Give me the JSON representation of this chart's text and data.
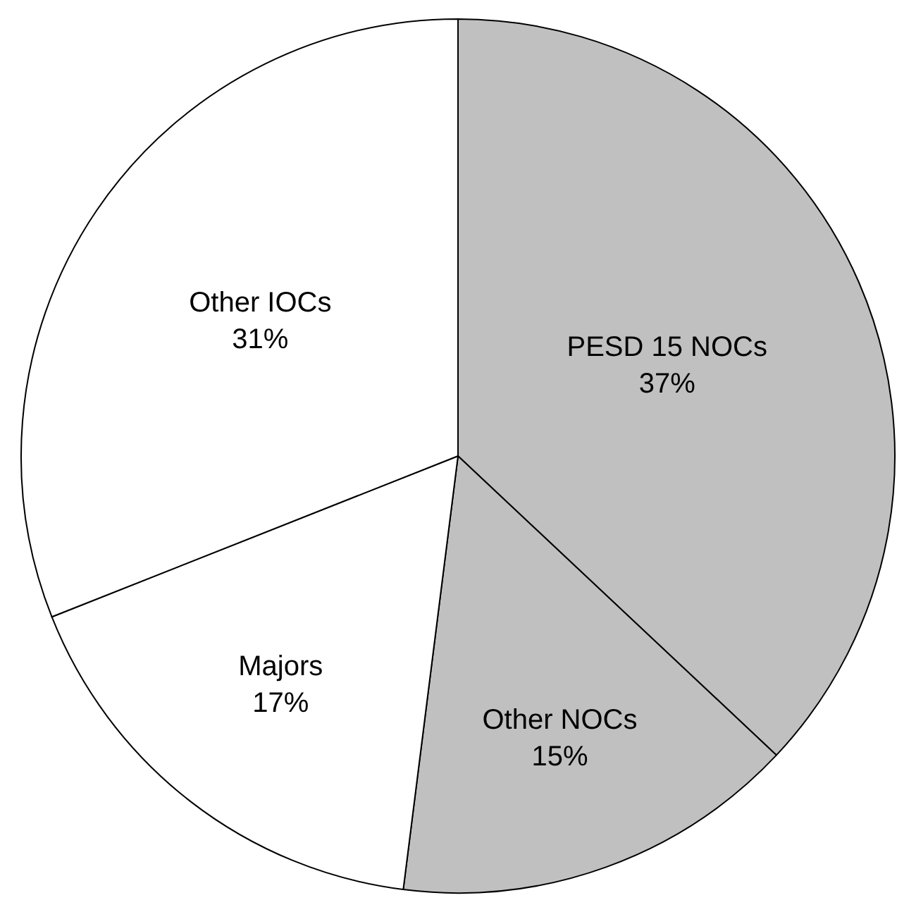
{
  "chart_data": {
    "type": "pie",
    "categories": [
      "PESD 15 NOCs",
      "Other NOCs",
      "Majors",
      "Other IOCs"
    ],
    "values": [
      37,
      15,
      17,
      31
    ],
    "colors": [
      "#c0c0c0",
      "#c0c0c0",
      "#ffffff",
      "#ffffff"
    ],
    "value_labels": [
      "37%",
      "15%",
      "17%",
      "31%"
    ],
    "legend": false
  }
}
